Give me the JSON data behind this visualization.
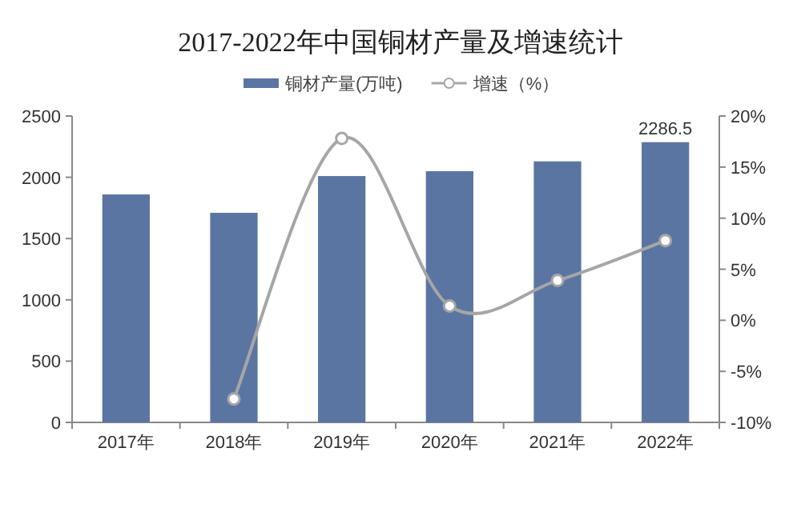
{
  "chart_data": {
    "type": "bar",
    "title": "2017-2022年中国铜材产量及增速统计",
    "categories": [
      "2017年",
      "2018年",
      "2019年",
      "2020年",
      "2021年",
      "2022年"
    ],
    "series": [
      {
        "name": "铜材产量(万吨)",
        "color": "#5b75a3",
        "values": [
          1860,
          1710,
          2010,
          2050,
          2130,
          2286.5
        ],
        "value_labels": [
          null,
          null,
          null,
          null,
          null,
          "2286.5"
        ]
      },
      {
        "name": "增速（%）",
        "type": "line",
        "axis": "y2",
        "color": "#a6a6a6",
        "marker": "circle",
        "values": [
          null,
          -7.7,
          17.8,
          1.4,
          3.9,
          7.8
        ]
      }
    ],
    "ylim": [
      0,
      2500
    ],
    "yticks": [
      0,
      500,
      1000,
      1500,
      2000,
      2500
    ],
    "y2lim": [
      -10,
      20
    ],
    "y2ticks": [
      {
        "value": -10,
        "label": "-10%"
      },
      {
        "value": -5,
        "label": "-5%"
      },
      {
        "value": 0,
        "label": "0%"
      },
      {
        "value": 5,
        "label": "5%"
      },
      {
        "value": 10,
        "label": "10%"
      },
      {
        "value": 15,
        "label": "15%"
      },
      {
        "value": 20,
        "label": "20%"
      }
    ],
    "legend": "top",
    "grid": false
  }
}
